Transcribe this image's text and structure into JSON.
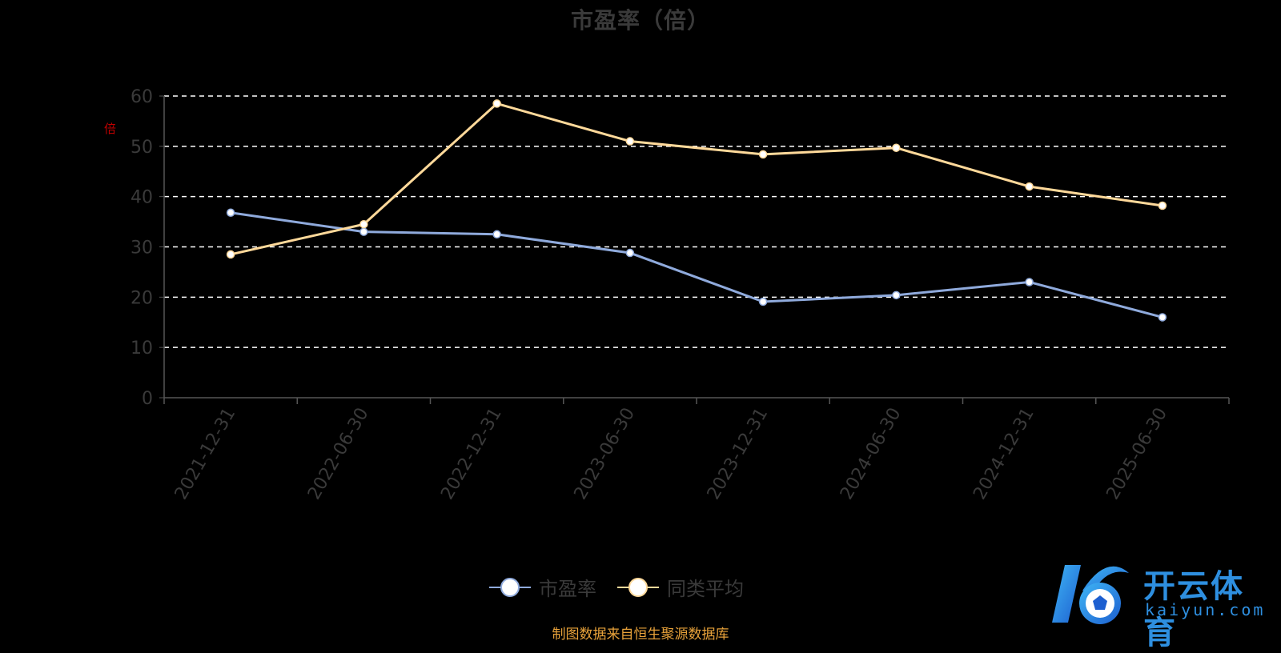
{
  "title": "市盈率（倍）",
  "ylabel": "倍",
  "source": "制图数据来自恒生聚源数据库",
  "watermark": {
    "brand": "开云体育",
    "domain": "kaiyun.com"
  },
  "colors": {
    "series1": "#8faadc",
    "series2": "#ffd99a",
    "grid": "#ffffff",
    "axis": "#555555",
    "tick": "#3a3a3a",
    "background": "#000000",
    "source": "#e8a23a",
    "watermark": "#2e8fe0"
  },
  "chart_data": {
    "type": "line",
    "title": "市盈率（倍）",
    "xlabel": "",
    "ylabel": "倍",
    "ylim": [
      0,
      60
    ],
    "yticks": [
      0,
      10,
      20,
      30,
      40,
      50,
      60
    ],
    "grid": true,
    "legend_position": "bottom",
    "categories": [
      "2021-12-31",
      "2022-06-30",
      "2022-12-31",
      "2023-06-30",
      "2023-12-31",
      "2024-06-30",
      "2024-12-31",
      "2025-06-30"
    ],
    "series": [
      {
        "name": "市盈率",
        "values": [
          36.8,
          33.0,
          32.5,
          28.8,
          19.1,
          20.4,
          23.0,
          16.0
        ]
      },
      {
        "name": "同类平均",
        "values": [
          28.5,
          34.5,
          58.5,
          51.0,
          48.4,
          49.7,
          42.0,
          38.2
        ]
      }
    ]
  }
}
